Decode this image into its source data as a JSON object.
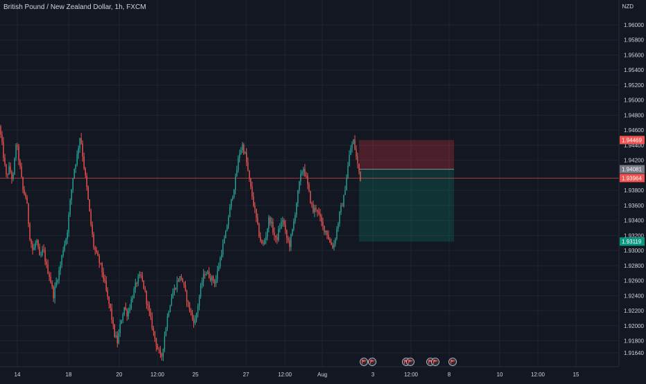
{
  "header": {
    "symbol_title": "British Pound / New Zealand Dollar, 1h, FXCM",
    "currency": "NZD"
  },
  "chart_data": {
    "type": "candlestick",
    "title": "British Pound / New Zealand Dollar, 1h, FXCM",
    "ylim": [
      1.914,
      1.9625
    ],
    "y_ticks": [
      "1.96000",
      "1.95800",
      "1.95600",
      "1.95400",
      "1.95200",
      "1.95000",
      "1.94800",
      "1.94600",
      "1.94400",
      "1.94200",
      "1.93800",
      "1.93600",
      "1.93400",
      "1.93200",
      "1.93000",
      "1.92800",
      "1.92600",
      "1.92400",
      "1.92200",
      "1.92000",
      "1.91800",
      "1.91640"
    ],
    "x_ticks": [
      "14",
      "18",
      "20",
      "12:00",
      "25",
      "27",
      "12:00",
      "Aug",
      "3",
      "12:00",
      "8",
      "10",
      "12:00",
      "15"
    ],
    "price_path": [
      1.9465,
      1.9435,
      1.9398,
      1.941,
      1.9392,
      1.9445,
      1.9415,
      1.938,
      1.937,
      1.932,
      1.9298,
      1.9315,
      1.9288,
      1.9302,
      1.9278,
      1.9265,
      1.924,
      1.926,
      1.9278,
      1.9305,
      1.932,
      1.9365,
      1.9405,
      1.9425,
      1.9455,
      1.9415,
      1.938,
      1.934,
      1.9305,
      1.9292,
      1.928,
      1.9262,
      1.9238,
      1.922,
      1.919,
      1.9178,
      1.9205,
      1.9225,
      1.9215,
      1.9232,
      1.9248,
      1.9262,
      1.9265,
      1.9248,
      1.9225,
      1.9205,
      1.9185,
      1.9168,
      1.9155,
      1.9188,
      1.9218,
      1.9238,
      1.925,
      1.9262,
      1.9265,
      1.9245,
      1.9228,
      1.9212,
      1.9205,
      1.9232,
      1.9258,
      1.9272,
      1.9268,
      1.9262,
      1.9258,
      1.928,
      1.9302,
      1.932,
      1.9348,
      1.9372,
      1.9395,
      1.9428,
      1.944,
      1.9425,
      1.9395,
      1.937,
      1.9345,
      1.932,
      1.9305,
      1.932,
      1.9345,
      1.9328,
      1.9312,
      1.933,
      1.9342,
      1.9318,
      1.9308,
      1.933,
      1.9362,
      1.9392,
      1.9412,
      1.9395,
      1.937,
      1.9352,
      1.9358,
      1.9342,
      1.933,
      1.9325,
      1.931,
      1.9305,
      1.9328,
      1.9352,
      1.9368,
      1.9402,
      1.9435,
      1.9446,
      1.9418,
      1.9396
    ],
    "current_price": {
      "label": "1.93964",
      "value": 1.93964
    },
    "position": {
      "type": "short",
      "stop": {
        "label": "1.94469",
        "value": 1.94469
      },
      "entry": {
        "label": "1.94081",
        "value": 1.94081
      },
      "target": {
        "label": "1.93119",
        "value": 1.93119
      }
    },
    "event_markers": [
      "flag-icon",
      "flag-icon",
      "flag-icon",
      "flag-icon",
      "flag-icon",
      "flag-icon",
      "flag-icon"
    ],
    "colors": {
      "background": "#131722",
      "up": "#26a69a",
      "down": "#ef5350",
      "grid": "#1f2430",
      "text": "#d1d4dc",
      "stop_zone": "rgba(242,54,69,0.25)",
      "target_zone": "rgba(8,153,129,0.22)",
      "entry_tag": "#787b86"
    },
    "grid": true,
    "legend": "none"
  }
}
